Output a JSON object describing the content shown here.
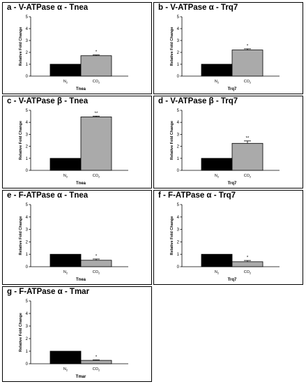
{
  "chart_data": [
    {
      "type": "bar",
      "title": "a - V-ATPase α - Tnea",
      "xlabel": "Tnea",
      "ylabel": "Relative Fold Change",
      "categories": [
        "N2",
        "CO2"
      ],
      "values": [
        1.0,
        1.72
      ],
      "errors": [
        0,
        0.06
      ],
      "significance": [
        "",
        "*"
      ],
      "colors": [
        "#000000",
        "#aaaaaa"
      ],
      "ylim": [
        0,
        5
      ],
      "yticks": [
        "0",
        "1",
        "2",
        "3",
        "4",
        "5"
      ]
    },
    {
      "type": "bar",
      "title": "b - V-ATPase α - Trq7",
      "xlabel": "Trq7",
      "ylabel": "Relative Fold Change",
      "categories": [
        "N2",
        "CO2"
      ],
      "values": [
        1.0,
        2.2
      ],
      "errors": [
        0,
        0.1
      ],
      "significance": [
        "",
        "*"
      ],
      "colors": [
        "#000000",
        "#aaaaaa"
      ],
      "ylim": [
        0,
        5
      ],
      "yticks": [
        "0",
        "1",
        "2",
        "3",
        "4",
        "5"
      ]
    },
    {
      "type": "bar",
      "title": "c - V-ATPase β - Tnea",
      "xlabel": "Tnea",
      "ylabel": "Relative Fold Change",
      "categories": [
        "N2",
        "CO2"
      ],
      "values": [
        1.0,
        4.45
      ],
      "errors": [
        0,
        0.07
      ],
      "significance": [
        "",
        "**"
      ],
      "colors": [
        "#000000",
        "#aaaaaa"
      ],
      "ylim": [
        0,
        5
      ],
      "yticks": [
        "0",
        "1",
        "2",
        "3",
        "4",
        "5"
      ]
    },
    {
      "type": "bar",
      "title": "d - V-ATPase β - Trq7",
      "xlabel": "Trq7",
      "ylabel": "Relative Fold Change",
      "categories": [
        "N2",
        "CO2"
      ],
      "values": [
        1.0,
        2.25
      ],
      "errors": [
        0,
        0.2
      ],
      "significance": [
        "",
        "**"
      ],
      "colors": [
        "#000000",
        "#aaaaaa"
      ],
      "ylim": [
        0,
        5
      ],
      "yticks": [
        "0",
        "1",
        "2",
        "3",
        "4",
        "5"
      ]
    },
    {
      "type": "bar",
      "title": "e - F-ATPase α - Tnea",
      "xlabel": "Tnea",
      "ylabel": "Relative Fold Change",
      "categories": [
        "N2",
        "CO2"
      ],
      "values": [
        1.0,
        0.52
      ],
      "errors": [
        0,
        0.1
      ],
      "significance": [
        "",
        "*"
      ],
      "colors": [
        "#000000",
        "#aaaaaa"
      ],
      "ylim": [
        0,
        5
      ],
      "yticks": [
        "0",
        "1",
        "2",
        "3",
        "4",
        "5"
      ]
    },
    {
      "type": "bar",
      "title": "f - F-ATPase α - Trq7",
      "xlabel": "Trq7",
      "ylabel": "Relative Fold Change",
      "categories": [
        "N2",
        "CO2"
      ],
      "values": [
        1.0,
        0.4
      ],
      "errors": [
        0,
        0.1
      ],
      "significance": [
        "",
        "*"
      ],
      "colors": [
        "#000000",
        "#aaaaaa"
      ],
      "ylim": [
        0,
        5
      ],
      "yticks": [
        "0",
        "1",
        "2",
        "3",
        "4",
        "5"
      ]
    },
    {
      "type": "bar",
      "title": "g - F-ATPase α - Tmar",
      "xlabel": "Tmar",
      "ylabel": "Relative Fold Change",
      "categories": [
        "N2",
        "CO2"
      ],
      "values": [
        1.0,
        0.27
      ],
      "errors": [
        0,
        0.04
      ],
      "significance": [
        "",
        "*"
      ],
      "colors": [
        "#000000",
        "#aaaaaa"
      ],
      "ylim": [
        0,
        5
      ],
      "yticks": [
        "0",
        "1",
        "2",
        "3",
        "4",
        "5"
      ]
    }
  ]
}
